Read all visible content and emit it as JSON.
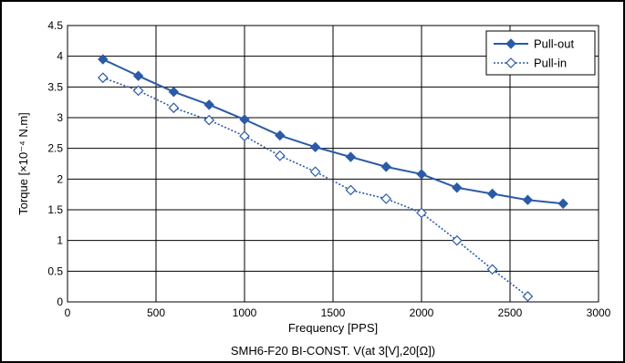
{
  "chart_data": {
    "type": "line",
    "xlabel": "Frequency [PPS]",
    "ylabel": "Torque [×10⁻⁴ N.m]",
    "caption": "SMH6-F20 BI-CONST. V(at 3[V],20[Ω])",
    "xlim": [
      0,
      3000
    ],
    "ylim": [
      0,
      4.5
    ],
    "x_ticks": [
      "0",
      "500",
      "1000",
      "1500",
      "2000",
      "2500",
      "3000"
    ],
    "y_ticks": [
      "0",
      "0.5",
      "1",
      "1.5",
      "2",
      "2.5",
      "3",
      "3.5",
      "4",
      "4.5"
    ],
    "grid": true,
    "legend_position": "top-right",
    "series": [
      {
        "name": "Pull-out",
        "color": "#2b5aa6",
        "line_style": "solid",
        "marker": "filled-diamond",
        "x": [
          200,
          400,
          600,
          800,
          1000,
          1200,
          1400,
          1600,
          1800,
          2000,
          2200,
          2400,
          2600,
          2800
        ],
        "values": [
          3.95,
          3.68,
          3.42,
          3.21,
          2.97,
          2.71,
          2.52,
          2.36,
          2.2,
          2.08,
          1.86,
          1.76,
          1.66,
          1.6
        ]
      },
      {
        "name": "Pull-in",
        "color": "#2b5aa6",
        "line_style": "dotted",
        "marker": "hollow-diamond",
        "x": [
          200,
          400,
          600,
          800,
          1000,
          1200,
          1400,
          1600,
          1800,
          2000,
          2200,
          2400,
          2600
        ],
        "values": [
          3.65,
          3.44,
          3.16,
          2.96,
          2.7,
          2.38,
          2.12,
          1.82,
          1.68,
          1.45,
          1.0,
          0.53,
          0.09
        ]
      }
    ]
  }
}
